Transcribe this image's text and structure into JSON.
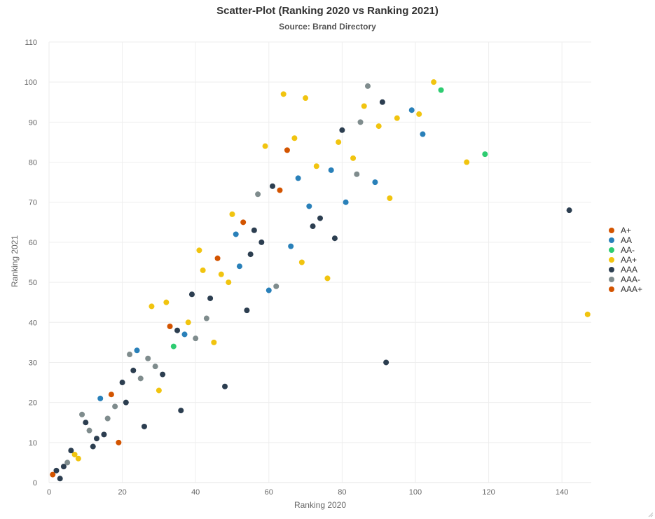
{
  "chart_data": {
    "type": "scatter",
    "title": "Scatter-Plot (Ranking 2020 vs Ranking 2021)",
    "subtitle": "Source: Brand Directory",
    "xlabel": "Ranking 2020",
    "ylabel": "Ranking 2021",
    "xlim": [
      0,
      148
    ],
    "ylim": [
      0,
      110
    ],
    "x_ticks": [
      "0",
      "20",
      "40",
      "60",
      "80",
      "100",
      "120",
      "140"
    ],
    "y_ticks": [
      "0",
      "10",
      "20",
      "30",
      "40",
      "50",
      "60",
      "70",
      "80",
      "90",
      "100",
      "110"
    ],
    "grid": true,
    "legend_position": "right",
    "series": [
      {
        "name": "A+",
        "color": "#d35400",
        "points": [
          [
            1,
            2
          ],
          [
            17,
            22
          ],
          [
            19,
            10
          ],
          [
            33,
            39
          ],
          [
            46,
            56
          ],
          [
            53,
            65
          ],
          [
            63,
            73
          ],
          [
            65,
            83
          ]
        ]
      },
      {
        "name": "AA",
        "color": "#2980b9",
        "points": [
          [
            14,
            21
          ],
          [
            24,
            33
          ],
          [
            37,
            37
          ],
          [
            51,
            62
          ],
          [
            52,
            54
          ],
          [
            60,
            48
          ],
          [
            66,
            59
          ],
          [
            68,
            76
          ],
          [
            71,
            69
          ],
          [
            77,
            78
          ],
          [
            81,
            70
          ],
          [
            89,
            75
          ],
          [
            99,
            93
          ],
          [
            102,
            87
          ]
        ]
      },
      {
        "name": "AA-",
        "color": "#2ecc71",
        "points": [
          [
            34,
            34
          ],
          [
            107,
            98
          ],
          [
            119,
            82
          ]
        ]
      },
      {
        "name": "AA+",
        "color": "#f1c40f",
        "points": [
          [
            7,
            7
          ],
          [
            8,
            6
          ],
          [
            28,
            44
          ],
          [
            30,
            23
          ],
          [
            32,
            45
          ],
          [
            38,
            40
          ],
          [
            41,
            58
          ],
          [
            42,
            53
          ],
          [
            45,
            35
          ],
          [
            47,
            52
          ],
          [
            49,
            50
          ],
          [
            50,
            67
          ],
          [
            59,
            84
          ],
          [
            64,
            97
          ],
          [
            67,
            86
          ],
          [
            69,
            55
          ],
          [
            70,
            96
          ],
          [
            73,
            79
          ],
          [
            76,
            51
          ],
          [
            79,
            85
          ],
          [
            83,
            81
          ],
          [
            86,
            94
          ],
          [
            90,
            89
          ],
          [
            93,
            71
          ],
          [
            95,
            91
          ],
          [
            101,
            92
          ],
          [
            105,
            100
          ],
          [
            114,
            80
          ],
          [
            147,
            42
          ]
        ]
      },
      {
        "name": "AAA",
        "color": "#2c3e50",
        "points": [
          [
            2,
            3
          ],
          [
            3,
            1
          ],
          [
            4,
            4
          ],
          [
            6,
            8
          ],
          [
            10,
            15
          ],
          [
            12,
            9
          ],
          [
            13,
            11
          ],
          [
            15,
            12
          ],
          [
            20,
            25
          ],
          [
            21,
            20
          ],
          [
            23,
            28
          ],
          [
            26,
            14
          ],
          [
            31,
            27
          ],
          [
            35,
            38
          ],
          [
            36,
            18
          ],
          [
            39,
            47
          ],
          [
            44,
            46
          ],
          [
            48,
            24
          ],
          [
            54,
            43
          ],
          [
            55,
            57
          ],
          [
            56,
            63
          ],
          [
            58,
            60
          ],
          [
            61,
            74
          ],
          [
            72,
            64
          ],
          [
            74,
            66
          ],
          [
            78,
            61
          ],
          [
            80,
            88
          ],
          [
            91,
            95
          ],
          [
            92,
            30
          ],
          [
            142,
            68
          ]
        ]
      },
      {
        "name": "AAA-",
        "color": "#7f8c8d",
        "points": [
          [
            5,
            5
          ],
          [
            9,
            17
          ],
          [
            11,
            13
          ],
          [
            16,
            16
          ],
          [
            18,
            19
          ],
          [
            22,
            32
          ],
          [
            25,
            26
          ],
          [
            27,
            31
          ],
          [
            29,
            29
          ],
          [
            40,
            36
          ],
          [
            43,
            41
          ],
          [
            57,
            72
          ],
          [
            62,
            49
          ],
          [
            84,
            77
          ],
          [
            85,
            90
          ],
          [
            87,
            99
          ]
        ]
      },
      {
        "name": "AAA+",
        "color": "#d35400",
        "points": []
      }
    ]
  }
}
